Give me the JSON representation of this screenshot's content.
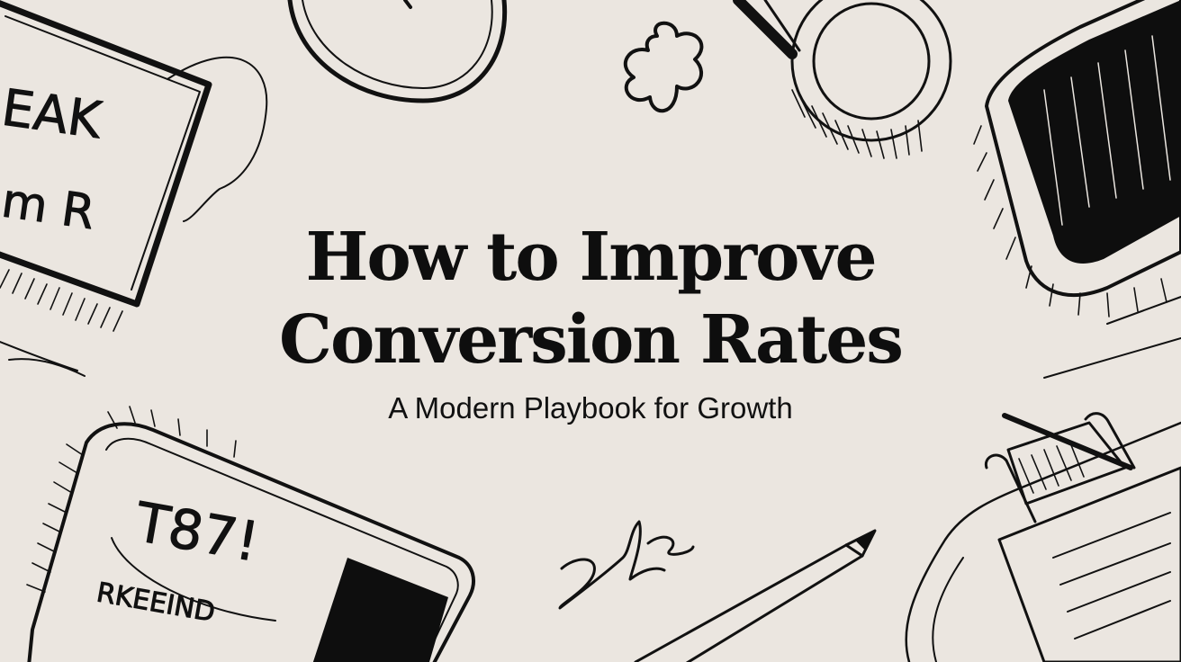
{
  "colors": {
    "background": "#ebe6e0",
    "ink": "#0e0e0e"
  },
  "title": {
    "line1": "How to Improve",
    "line2": "Conversion Rates"
  },
  "subtitle": "A Modern Playbook for Growth",
  "doodles": {
    "top_left_card_line1": "EAK",
    "top_left_card_line2": "m R",
    "bottom_left_card_line1": "T87!",
    "bottom_left_card_line2": "RKEEIND"
  }
}
